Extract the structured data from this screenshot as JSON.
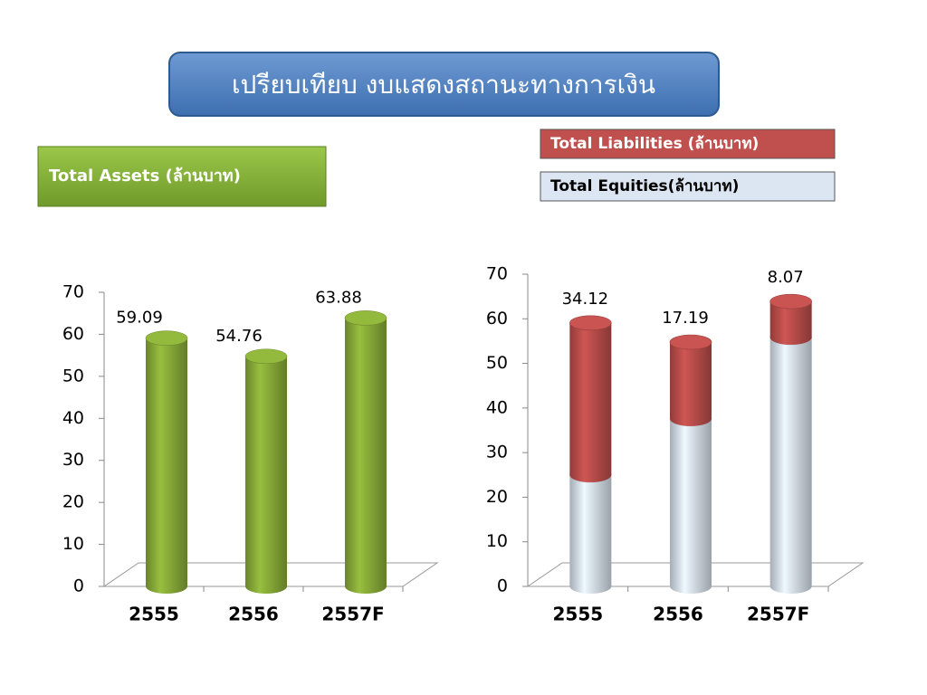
{
  "title": "เปรียบเทียบ งบแสดงสถานะทางการเงิน",
  "chart_data": [
    {
      "type": "bar",
      "title": "Total Assets (ล้านบาท)",
      "categories": [
        "2555",
        "2556",
        "2557F"
      ],
      "values": [
        59.09,
        54.76,
        63.88
      ],
      "color": "#8db13a",
      "ylim": [
        0,
        70
      ],
      "yticks": [
        0,
        10,
        20,
        30,
        40,
        50,
        60,
        70
      ]
    },
    {
      "type": "stacked_bar",
      "categories": [
        "2555",
        "2556",
        "2557F"
      ],
      "series": [
        {
          "name": "Total Equities(ล้านบาท)",
          "color": "#dce6f2",
          "values": [
            24.97,
            37.57,
            55.81
          ],
          "data_labels": false
        },
        {
          "name": "Total Liabilities (ล้านบาท)",
          "color": "#c0504d",
          "values": [
            34.12,
            17.19,
            8.07
          ],
          "data_labels": true
        }
      ],
      "ylim": [
        0,
        70
      ],
      "yticks": [
        0,
        10,
        20,
        30,
        40,
        50,
        60,
        70
      ]
    }
  ]
}
